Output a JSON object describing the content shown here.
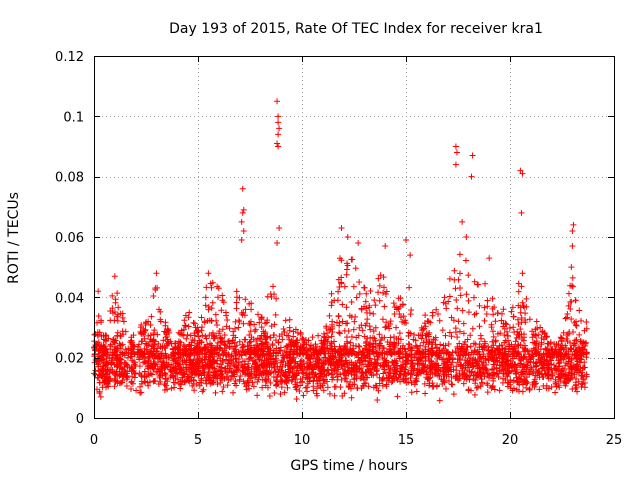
{
  "chart_data": {
    "type": "scatter",
    "title": "Day 193 of 2015, Rate Of TEC Index for receiver kra1",
    "xlabel": "GPS time / hours",
    "ylabel": "ROTI / TECUs",
    "xlim": [
      0,
      25
    ],
    "ylim": [
      0,
      0.12
    ],
    "x_ticks": [
      0,
      5,
      10,
      15,
      20,
      25
    ],
    "x_tick_labels": [
      "0",
      "5",
      "10",
      "15",
      "20",
      "25"
    ],
    "y_ticks": [
      0,
      0.02,
      0.04,
      0.06,
      0.08,
      0.1,
      0.12
    ],
    "y_tick_labels": [
      "0",
      "0.02",
      "0.04",
      "0.06",
      "0.08",
      "0.1",
      "0.12"
    ],
    "grid": true,
    "marker": "+",
    "marker_color": "#ff0000",
    "background_band": {
      "description": "dense cloud of points along the whole day",
      "x_range": [
        0,
        23.7
      ],
      "y_low": 0.005,
      "y_high": 0.03
    },
    "activity_envelope": [
      {
        "x": 0.0,
        "y": 0.03
      },
      {
        "x": 0.2,
        "y": 0.042
      },
      {
        "x": 0.5,
        "y": 0.026
      },
      {
        "x": 1.0,
        "y": 0.047
      },
      {
        "x": 1.5,
        "y": 0.031
      },
      {
        "x": 2.0,
        "y": 0.027
      },
      {
        "x": 2.6,
        "y": 0.036
      },
      {
        "x": 3.0,
        "y": 0.048
      },
      {
        "x": 3.5,
        "y": 0.03
      },
      {
        "x": 4.0,
        "y": 0.025
      },
      {
        "x": 4.5,
        "y": 0.037
      },
      {
        "x": 5.0,
        "y": 0.03
      },
      {
        "x": 5.5,
        "y": 0.048
      },
      {
        "x": 6.0,
        "y": 0.043
      },
      {
        "x": 6.5,
        "y": 0.039
      },
      {
        "x": 7.0,
        "y": 0.044
      },
      {
        "x": 7.5,
        "y": 0.04
      },
      {
        "x": 8.0,
        "y": 0.033
      },
      {
        "x": 8.5,
        "y": 0.047
      },
      {
        "x": 9.0,
        "y": 0.038
      },
      {
        "x": 9.5,
        "y": 0.032
      },
      {
        "x": 10.0,
        "y": 0.028
      },
      {
        "x": 10.5,
        "y": 0.024
      },
      {
        "x": 11.0,
        "y": 0.026
      },
      {
        "x": 11.6,
        "y": 0.052
      },
      {
        "x": 12.0,
        "y": 0.059
      },
      {
        "x": 12.5,
        "y": 0.054
      },
      {
        "x": 13.0,
        "y": 0.044
      },
      {
        "x": 13.5,
        "y": 0.05
      },
      {
        "x": 14.0,
        "y": 0.047
      },
      {
        "x": 14.5,
        "y": 0.038
      },
      {
        "x": 15.0,
        "y": 0.05
      },
      {
        "x": 15.5,
        "y": 0.03
      },
      {
        "x": 16.0,
        "y": 0.036
      },
      {
        "x": 16.5,
        "y": 0.038
      },
      {
        "x": 17.0,
        "y": 0.044
      },
      {
        "x": 17.5,
        "y": 0.058
      },
      {
        "x": 18.0,
        "y": 0.053
      },
      {
        "x": 18.5,
        "y": 0.05
      },
      {
        "x": 19.0,
        "y": 0.044
      },
      {
        "x": 19.5,
        "y": 0.037
      },
      {
        "x": 20.0,
        "y": 0.035
      },
      {
        "x": 20.5,
        "y": 0.048
      },
      {
        "x": 21.0,
        "y": 0.036
      },
      {
        "x": 21.5,
        "y": 0.03
      },
      {
        "x": 22.0,
        "y": 0.027
      },
      {
        "x": 22.5,
        "y": 0.03
      },
      {
        "x": 23.0,
        "y": 0.05
      },
      {
        "x": 23.5,
        "y": 0.032
      }
    ],
    "notable_points": [
      {
        "x": 7.15,
        "y": 0.076
      },
      {
        "x": 7.2,
        "y": 0.069
      },
      {
        "x": 7.15,
        "y": 0.068
      },
      {
        "x": 7.1,
        "y": 0.065
      },
      {
        "x": 7.2,
        "y": 0.062
      },
      {
        "x": 7.1,
        "y": 0.059
      },
      {
        "x": 8.8,
        "y": 0.105
      },
      {
        "x": 8.85,
        "y": 0.1
      },
      {
        "x": 8.85,
        "y": 0.098
      },
      {
        "x": 8.9,
        "y": 0.096
      },
      {
        "x": 8.85,
        "y": 0.094
      },
      {
        "x": 8.8,
        "y": 0.091
      },
      {
        "x": 8.85,
        "y": 0.09
      },
      {
        "x": 8.9,
        "y": 0.063
      },
      {
        "x": 8.8,
        "y": 0.058
      },
      {
        "x": 11.9,
        "y": 0.063
      },
      {
        "x": 12.2,
        "y": 0.06
      },
      {
        "x": 12.7,
        "y": 0.058
      },
      {
        "x": 14.0,
        "y": 0.057
      },
      {
        "x": 15.0,
        "y": 0.059
      },
      {
        "x": 15.2,
        "y": 0.054
      },
      {
        "x": 17.4,
        "y": 0.09
      },
      {
        "x": 17.45,
        "y": 0.088
      },
      {
        "x": 17.4,
        "y": 0.084
      },
      {
        "x": 18.2,
        "y": 0.087
      },
      {
        "x": 18.15,
        "y": 0.08
      },
      {
        "x": 17.7,
        "y": 0.065
      },
      {
        "x": 17.9,
        "y": 0.06
      },
      {
        "x": 20.5,
        "y": 0.082
      },
      {
        "x": 20.6,
        "y": 0.081
      },
      {
        "x": 20.55,
        "y": 0.068
      },
      {
        "x": 20.6,
        "y": 0.048
      },
      {
        "x": 23.05,
        "y": 0.064
      },
      {
        "x": 23.0,
        "y": 0.062
      },
      {
        "x": 23.0,
        "y": 0.057
      },
      {
        "x": 22.95,
        "y": 0.05
      },
      {
        "x": 5.5,
        "y": 0.048
      },
      {
        "x": 1.0,
        "y": 0.047
      },
      {
        "x": 0.2,
        "y": 0.042
      },
      {
        "x": 3.0,
        "y": 0.048
      },
      {
        "x": 6.0,
        "y": 0.043
      },
      {
        "x": 19.0,
        "y": 0.053
      }
    ]
  }
}
